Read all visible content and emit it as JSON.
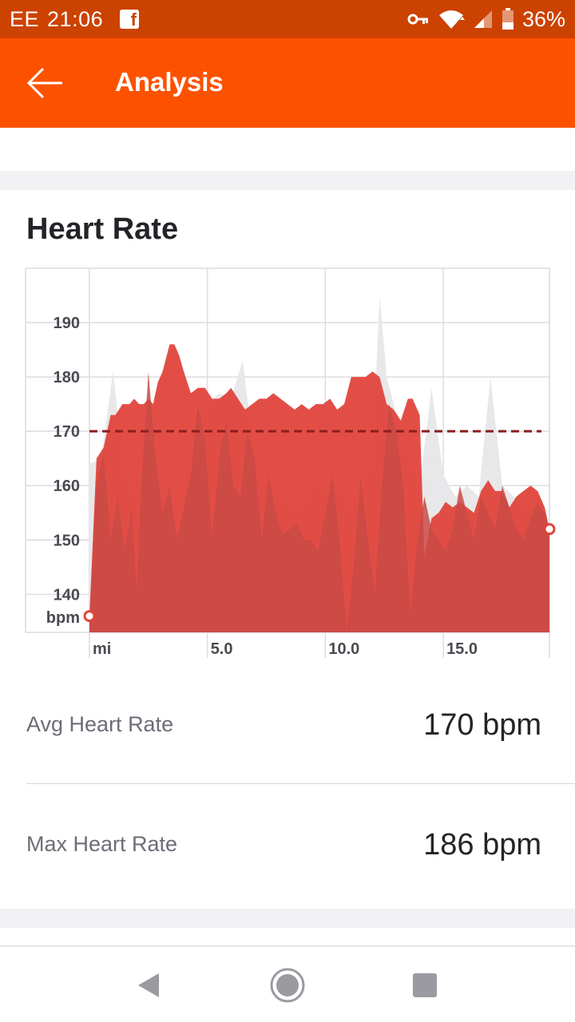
{
  "status_bar": {
    "carrier": "EE",
    "time": "21:06",
    "battery_percent": "36%",
    "icons": [
      "facebook-notification-icon",
      "vpn-key-icon",
      "wifi-icon",
      "signal-icon",
      "battery-icon"
    ]
  },
  "app_bar": {
    "title": "Analysis",
    "back_icon": "arrow-left-icon"
  },
  "card": {
    "title": "Heart Rate"
  },
  "chart_data": {
    "type": "area",
    "y_unit_label": "bpm",
    "x_unit_label": "mi",
    "y_ticks": [
      "190",
      "180",
      "170",
      "160",
      "150",
      "140"
    ],
    "x_ticks": [
      "5.0",
      "10.0",
      "15.0"
    ],
    "ylim": [
      133,
      200
    ],
    "xlim": [
      0,
      19.5
    ],
    "average_line": 170,
    "series": [
      {
        "role": "heart_rate",
        "color": "#e0443c",
        "x": [
          0,
          0.3,
          0.6,
          0.9,
          1.1,
          1.4,
          1.7,
          1.9,
          2.1,
          2.3,
          2.5,
          2.7,
          2.9,
          3.1,
          3.4,
          3.6,
          3.8,
          4.0,
          4.3,
          4.6,
          4.9,
          5.2,
          5.5,
          5.8,
          6.0,
          6.3,
          6.6,
          6.9,
          7.2,
          7.5,
          7.8,
          8.1,
          8.4,
          8.7,
          9.0,
          9.3,
          9.6,
          9.9,
          10.2,
          10.5,
          10.8,
          11.1,
          11.4,
          11.7,
          12.0,
          12.3,
          12.6,
          12.9,
          13.2,
          13.5,
          13.7,
          14.0,
          14.2,
          14.5,
          14.8,
          15.1,
          15.4,
          15.7,
          16.0,
          16.3,
          16.6,
          16.9,
          17.2,
          17.5,
          17.8,
          18.1,
          18.4,
          18.7,
          19.0,
          19.3,
          19.5
        ],
        "values": [
          136,
          165,
          167,
          173,
          173,
          175,
          175,
          176,
          175,
          175,
          176,
          175,
          179,
          181,
          186,
          186,
          184,
          181,
          177,
          178,
          178,
          176,
          176,
          177,
          178,
          176,
          174,
          175,
          176,
          176,
          177,
          176,
          175,
          174,
          175,
          174,
          175,
          175,
          176,
          174,
          175,
          180,
          180,
          180,
          181,
          180,
          175,
          174,
          172,
          176,
          176,
          173,
          147,
          154,
          155,
          157,
          156,
          157,
          156,
          155,
          159,
          161,
          159,
          159,
          156,
          158,
          159,
          160,
          159,
          156,
          152
        ]
      },
      {
        "role": "secondary_overlay",
        "color": "#c94a45",
        "x": [
          0,
          0.3,
          0.6,
          0.9,
          1.2,
          1.5,
          1.8,
          2.0,
          2.2,
          2.5,
          2.8,
          3.1,
          3.4,
          3.7,
          4.0,
          4.3,
          4.6,
          4.9,
          5.2,
          5.5,
          5.8,
          6.1,
          6.4,
          6.7,
          7.0,
          7.3,
          7.6,
          7.9,
          8.2,
          8.5,
          8.8,
          9.1,
          9.4,
          9.7,
          10.0,
          10.3,
          10.6,
          10.9,
          11.2,
          11.5,
          11.8,
          12.1,
          12.4,
          12.7,
          13.0,
          13.3,
          13.6,
          13.9,
          14.2,
          14.5,
          14.8,
          15.1,
          15.4,
          15.7,
          16.0,
          16.3,
          16.6,
          16.9,
          17.2,
          17.5,
          17.8,
          18.1,
          18.4,
          18.7,
          19.0,
          19.3,
          19.5
        ],
        "values": [
          136,
          160,
          166,
          150,
          158,
          148,
          156,
          140,
          160,
          181,
          165,
          155,
          160,
          150,
          156,
          162,
          175,
          168,
          150,
          165,
          172,
          160,
          158,
          170,
          165,
          150,
          162,
          155,
          151,
          152,
          153,
          150,
          150,
          148,
          155,
          162,
          150,
          133,
          145,
          162,
          150,
          140,
          160,
          175,
          170,
          160,
          136,
          150,
          158,
          152,
          150,
          148,
          152,
          160,
          155,
          150,
          158,
          155,
          152,
          160,
          156,
          152,
          150,
          154,
          157,
          155,
          152
        ]
      },
      {
        "role": "background_profile",
        "color": "#e8e8ea",
        "x": [
          0,
          0.5,
          1.0,
          1.5,
          2.0,
          2.5,
          3.0,
          3.5,
          4.0,
          4.5,
          5.0,
          5.5,
          6.0,
          6.5,
          7.0,
          7.5,
          8.0,
          8.5,
          9.0,
          9.5,
          10.0,
          10.5,
          11.0,
          11.5,
          12.0,
          12.3,
          12.6,
          12.9,
          13.2,
          13.5,
          14.0,
          14.5,
          15.0,
          15.5,
          16.0,
          16.5,
          17.0,
          17.5,
          18.0,
          18.5,
          19.0,
          19.5
        ],
        "values": [
          164,
          165,
          181,
          162,
          158,
          163,
          160,
          152,
          150,
          155,
          175,
          177,
          176,
          183,
          165,
          160,
          158,
          156,
          155,
          160,
          158,
          160,
          156,
          158,
          165,
          195,
          180,
          175,
          168,
          165,
          160,
          178,
          162,
          158,
          160,
          158,
          180,
          160,
          158,
          156,
          155,
          153
        ]
      }
    ],
    "start_marker": {
      "x": 0,
      "y": 136
    },
    "end_marker": {
      "x": 19.5,
      "y": 152
    }
  },
  "stats": {
    "avg_label": "Avg Heart Rate",
    "avg_value": "170 bpm",
    "max_label": "Max Heart Rate",
    "max_value": "186 bpm"
  },
  "nav_bar": {
    "icons": [
      "back-triangle-icon",
      "home-circle-icon",
      "recents-square-icon"
    ]
  }
}
